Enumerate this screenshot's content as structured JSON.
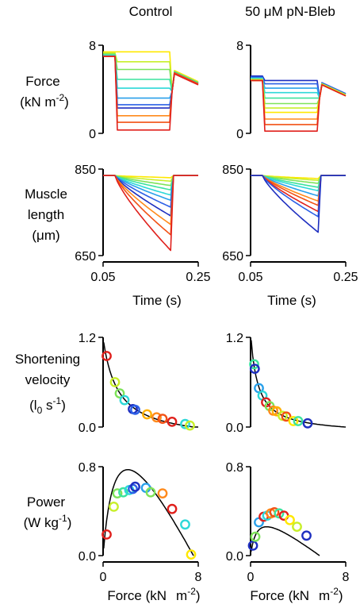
{
  "columns": {
    "control": "Control",
    "bleb": "50 μM pN-Bleb"
  },
  "rows": {
    "force": [
      "Force",
      "(kN  m",
      "-2",
      ")"
    ],
    "length": [
      "Muscle",
      "length",
      "(μm)"
    ],
    "velocity": [
      "Shortening",
      "velocity",
      "(l",
      "0",
      "  s",
      "-1",
      ")"
    ],
    "power": [
      "Power",
      "(W kg",
      "-1",
      ")"
    ]
  },
  "xlabels": {
    "time": "Time (s)",
    "force": "Force (kN",
    "force_unit": "m",
    "force_exp": "-2",
    "force_close": ")"
  },
  "palette": [
    "#ffe800",
    "#c8ef2a",
    "#7ee35a",
    "#3ce39e",
    "#2dd8d8",
    "#29a0ea",
    "#2c60e6",
    "#1e2fc0",
    "#ff8a1c",
    "#f25014",
    "#e0201c"
  ],
  "chart_data": [
    {
      "id": "force-control",
      "type": "line",
      "title": "",
      "xlabel": "",
      "ylabel": "Force (kN m-2)",
      "xlim": [
        0.05,
        0.25
      ],
      "ylim": [
        0,
        8
      ],
      "yticks": [
        "8",
        "0"
      ],
      "phase_times": [
        0.05,
        0.075,
        0.08,
        0.19,
        0.195,
        0.25
      ],
      "series": [
        {
          "color": "#ffe800",
          "values": [
            7.4,
            7.4,
            7.4,
            7.4,
            3.8,
            4.7
          ]
        },
        {
          "color": "#c8ef2a",
          "values": [
            7.3,
            7.3,
            6.5,
            6.5,
            3.8,
            4.6
          ]
        },
        {
          "color": "#7ee35a",
          "values": [
            7.2,
            7.2,
            5.8,
            5.8,
            3.8,
            4.6
          ]
        },
        {
          "color": "#3ce39e",
          "values": [
            7.1,
            7.1,
            4.9,
            4.9,
            3.8,
            4.6
          ]
        },
        {
          "color": "#2dd8d8",
          "values": [
            7.1,
            7.1,
            4.1,
            4.1,
            3.8,
            4.5
          ]
        },
        {
          "color": "#29a0ea",
          "values": [
            7.0,
            7.0,
            3.2,
            3.2,
            3.8,
            4.5
          ]
        },
        {
          "color": "#2c60e6",
          "values": [
            7.0,
            7.0,
            2.6,
            2.6,
            3.8,
            4.5
          ]
        },
        {
          "color": "#1e2fc0",
          "values": [
            7.0,
            7.0,
            2.3,
            2.3,
            3.8,
            4.5
          ]
        },
        {
          "color": "#ff8a1c",
          "values": [
            7.0,
            7.0,
            1.6,
            1.6,
            3.8,
            4.5
          ]
        },
        {
          "color": "#f25014",
          "values": [
            7.0,
            7.0,
            1.0,
            1.0,
            3.8,
            4.5
          ]
        },
        {
          "color": "#e0201c",
          "values": [
            7.0,
            7.0,
            0.3,
            0.3,
            3.8,
            4.4
          ]
        }
      ]
    },
    {
      "id": "force-bleb",
      "type": "line",
      "title": "",
      "xlabel": "",
      "ylabel": "",
      "xlim": [
        0.05,
        0.25
      ],
      "ylim": [
        0,
        8
      ],
      "yticks": [
        "8",
        "0"
      ],
      "phase_times": [
        0.05,
        0.075,
        0.08,
        0.19,
        0.195,
        0.25
      ],
      "series": [
        {
          "color": "#1e2fc0",
          "values": [
            5.2,
            5.2,
            4.8,
            4.8,
            3.2,
            3.6
          ]
        },
        {
          "color": "#2c60e6",
          "values": [
            5.1,
            5.1,
            4.5,
            4.5,
            3.2,
            3.6
          ]
        },
        {
          "color": "#29a0ea",
          "values": [
            5.0,
            5.0,
            4.1,
            4.1,
            3.2,
            3.5
          ]
        },
        {
          "color": "#2dd8d8",
          "values": [
            5.0,
            5.0,
            3.7,
            3.7,
            3.2,
            3.5
          ]
        },
        {
          "color": "#3ce39e",
          "values": [
            4.9,
            4.9,
            3.2,
            3.2,
            3.2,
            3.5
          ]
        },
        {
          "color": "#7ee35a",
          "values": [
            4.9,
            4.9,
            2.7,
            2.7,
            3.2,
            3.5
          ]
        },
        {
          "color": "#c8ef2a",
          "values": [
            4.9,
            4.9,
            2.3,
            2.3,
            3.2,
            3.5
          ]
        },
        {
          "color": "#ffe800",
          "values": [
            4.8,
            4.8,
            1.9,
            1.9,
            3.2,
            3.4
          ]
        },
        {
          "color": "#ff8a1c",
          "values": [
            4.8,
            4.8,
            1.3,
            1.3,
            3.2,
            3.4
          ]
        },
        {
          "color": "#f25014",
          "values": [
            4.8,
            4.8,
            0.8,
            0.8,
            3.2,
            3.4
          ]
        },
        {
          "color": "#e0201c",
          "values": [
            4.8,
            4.8,
            0.2,
            0.2,
            3.2,
            3.4
          ]
        }
      ]
    },
    {
      "id": "length-control",
      "type": "line",
      "title": "",
      "xlabel": "Time (s)",
      "ylabel": "Muscle length (μm)",
      "xlim": [
        0.05,
        0.25
      ],
      "ylim": [
        650,
        850
      ],
      "yticks": [
        "850",
        "650"
      ],
      "xticks": [
        "0.05",
        "0.25"
      ],
      "start": 835,
      "t_start": 0.075,
      "t_end": 0.192,
      "t_back": 0.198,
      "series": [
        {
          "color": "#ffe800",
          "end": 830
        },
        {
          "color": "#c8ef2a",
          "end": 822
        },
        {
          "color": "#7ee35a",
          "end": 812
        },
        {
          "color": "#3ce39e",
          "end": 802
        },
        {
          "color": "#2dd8d8",
          "end": 790
        },
        {
          "color": "#29a0ea",
          "end": 778
        },
        {
          "color": "#2c60e6",
          "end": 762
        },
        {
          "color": "#1e2fc0",
          "end": 742
        },
        {
          "color": "#ff8a1c",
          "end": 722
        },
        {
          "color": "#f25014",
          "end": 698
        },
        {
          "color": "#e0201c",
          "end": 662
        }
      ]
    },
    {
      "id": "length-bleb",
      "type": "line",
      "title": "",
      "xlabel": "Time (s)",
      "ylabel": "",
      "xlim": [
        0.05,
        0.25
      ],
      "ylim": [
        650,
        850
      ],
      "yticks": [
        "850",
        "650"
      ],
      "xticks": [
        "0.05",
        "0.25"
      ],
      "start": 835,
      "t_start": 0.075,
      "t_end": 0.192,
      "t_back": 0.198,
      "series": [
        {
          "color": "#ffe800",
          "end": 828
        },
        {
          "color": "#c8ef2a",
          "end": 824
        },
        {
          "color": "#7ee35a",
          "end": 817
        },
        {
          "color": "#3ce39e",
          "end": 808
        },
        {
          "color": "#2dd8d8",
          "end": 800
        },
        {
          "color": "#29a0ea",
          "end": 788
        },
        {
          "color": "#ff8a1c",
          "end": 776
        },
        {
          "color": "#f25014",
          "end": 766
        },
        {
          "color": "#e0201c",
          "end": 752
        },
        {
          "color": "#2c60e6",
          "end": 740
        },
        {
          "color": "#1e2fc0",
          "end": 704
        }
      ]
    },
    {
      "id": "velocity-control",
      "type": "scatter",
      "title": "",
      "xlabel": "",
      "ylabel": "Shortening velocity (l0 s-1)",
      "xlim": [
        0,
        8
      ],
      "ylim": [
        0,
        1.2
      ],
      "yticks": [
        "1.2",
        "0.0"
      ],
      "fit": {
        "F0": 7.6,
        "a": 1.25,
        "b": 0.195
      },
      "points": [
        {
          "x": 0.3,
          "y": 0.95,
          "color": "#e0201c"
        },
        {
          "x": 1.0,
          "y": 0.6,
          "color": "#c8ef2a"
        },
        {
          "x": 1.4,
          "y": 0.45,
          "color": "#7ee35a"
        },
        {
          "x": 1.8,
          "y": 0.36,
          "color": "#2dd8d8"
        },
        {
          "x": 2.5,
          "y": 0.24,
          "color": "#1e2fc0"
        },
        {
          "x": 2.7,
          "y": 0.23,
          "color": "#2c60e6"
        },
        {
          "x": 3.7,
          "y": 0.17,
          "color": "#ffb000"
        },
        {
          "x": 4.5,
          "y": 0.13,
          "color": "#ff8a1c"
        },
        {
          "x": 5.0,
          "y": 0.11,
          "color": "#f25014"
        },
        {
          "x": 5.8,
          "y": 0.07,
          "color": "#e0201c"
        },
        {
          "x": 6.9,
          "y": 0.04,
          "color": "#2dd8d8"
        },
        {
          "x": 7.3,
          "y": 0.02,
          "color": "#c8ef2a"
        }
      ]
    },
    {
      "id": "velocity-bleb",
      "type": "scatter",
      "title": "",
      "xlabel": "",
      "ylabel": "",
      "xlim": [
        0,
        8
      ],
      "ylim": [
        0,
        1.2
      ],
      "yticks": [
        "1.2",
        "0.0"
      ],
      "fit": {
        "F0": 8,
        "a": 0.6,
        "b": 0.095
      },
      "points": [
        {
          "x": 0.3,
          "y": 0.84,
          "color": "#3ce39e"
        },
        {
          "x": 0.35,
          "y": 0.78,
          "color": "#1e2fc0"
        },
        {
          "x": 0.7,
          "y": 0.52,
          "color": "#29a0ea"
        },
        {
          "x": 1.0,
          "y": 0.42,
          "color": "#2dd8d8"
        },
        {
          "x": 1.3,
          "y": 0.33,
          "color": "#e0201c"
        },
        {
          "x": 1.6,
          "y": 0.28,
          "color": "#7ee35a"
        },
        {
          "x": 1.9,
          "y": 0.22,
          "color": "#ff8a1c"
        },
        {
          "x": 2.2,
          "y": 0.21,
          "color": "#ffb000"
        },
        {
          "x": 2.7,
          "y": 0.15,
          "color": "#c8ef2a"
        },
        {
          "x": 3.0,
          "y": 0.14,
          "color": "#f25014"
        },
        {
          "x": 3.6,
          "y": 0.08,
          "color": "#ffe800"
        },
        {
          "x": 4.0,
          "y": 0.08,
          "color": "#3ce39e"
        },
        {
          "x": 4.8,
          "y": 0.05,
          "color": "#1e2fc0"
        }
      ]
    },
    {
      "id": "power-control",
      "type": "scatter",
      "title": "",
      "xlabel": "Force (kN m-2)",
      "ylabel": "Power (W kg-1)",
      "xlim": [
        0,
        8
      ],
      "ylim": [
        0,
        0.8
      ],
      "yticks": [
        "0.8",
        "0.0"
      ],
      "xticks": [
        "0",
        "8"
      ],
      "fit": {
        "F0": 7.6,
        "a": 1.25,
        "b": 0.195,
        "scale": 0.62
      },
      "points": [
        {
          "x": 0.3,
          "y": 0.19,
          "color": "#e0201c"
        },
        {
          "x": 0.9,
          "y": 0.44,
          "color": "#c8ef2a"
        },
        {
          "x": 1.2,
          "y": 0.56,
          "color": "#7ee35a"
        },
        {
          "x": 1.7,
          "y": 0.57,
          "color": "#3ce39e"
        },
        {
          "x": 2.2,
          "y": 0.59,
          "color": "#2dd8d8"
        },
        {
          "x": 2.5,
          "y": 0.6,
          "color": "#2c60e6"
        },
        {
          "x": 2.7,
          "y": 0.62,
          "color": "#1e2fc0"
        },
        {
          "x": 3.6,
          "y": 0.61,
          "color": "#29a0ea"
        },
        {
          "x": 4.0,
          "y": 0.57,
          "color": "#7ee35a"
        },
        {
          "x": 5.0,
          "y": 0.56,
          "color": "#ff8a1c"
        },
        {
          "x": 5.8,
          "y": 0.42,
          "color": "#e0201c"
        },
        {
          "x": 6.9,
          "y": 0.28,
          "color": "#2dd8d8"
        },
        {
          "x": 7.4,
          "y": 0.01,
          "color": "#ffe800"
        }
      ]
    },
    {
      "id": "power-bleb",
      "type": "scatter",
      "title": "",
      "xlabel": "Force (kN m-2)",
      "ylabel": "",
      "xlim": [
        0,
        8
      ],
      "ylim": [
        0,
        0.8
      ],
      "yticks": [
        "0.8",
        "0.0"
      ],
      "xticks": [
        "0",
        "8"
      ],
      "fit": {
        "F0": 5.8,
        "a": 0.6,
        "b": 0.095,
        "scale": 0.37
      },
      "points": [
        {
          "x": 0.2,
          "y": 0.09,
          "color": "#1e2fc0"
        },
        {
          "x": 0.4,
          "y": 0.17,
          "color": "#7ee35a"
        },
        {
          "x": 0.7,
          "y": 0.3,
          "color": "#29a0ea"
        },
        {
          "x": 1.1,
          "y": 0.35,
          "color": "#e0201c"
        },
        {
          "x": 1.4,
          "y": 0.36,
          "color": "#2dd8d8"
        },
        {
          "x": 1.7,
          "y": 0.38,
          "color": "#ff8a1c"
        },
        {
          "x": 2.0,
          "y": 0.39,
          "color": "#f25014"
        },
        {
          "x": 2.4,
          "y": 0.38,
          "color": "#3ce39e"
        },
        {
          "x": 2.8,
          "y": 0.36,
          "color": "#e0201c"
        },
        {
          "x": 3.3,
          "y": 0.32,
          "color": "#ffe800"
        },
        {
          "x": 3.9,
          "y": 0.26,
          "color": "#c8ef2a"
        },
        {
          "x": 4.7,
          "y": 0.18,
          "color": "#1e2fc0"
        }
      ]
    }
  ]
}
